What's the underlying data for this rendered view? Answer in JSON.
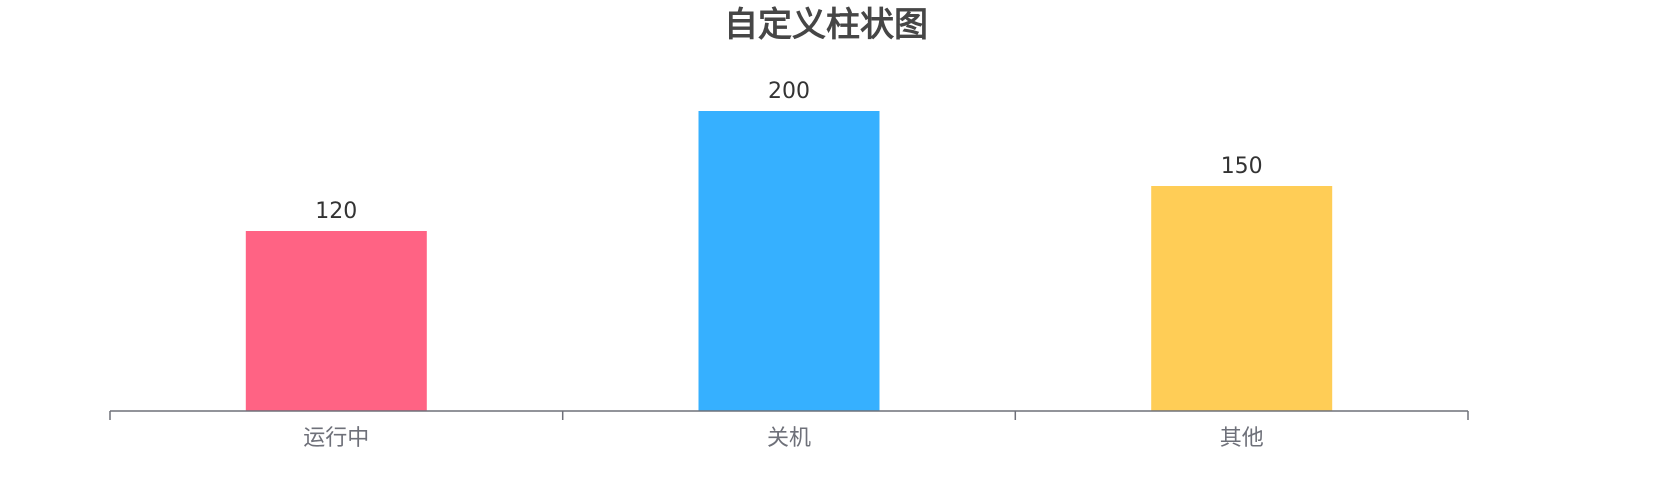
{
  "chart_data": {
    "type": "bar",
    "title": "自定义柱状图",
    "categories": [
      "运行中",
      "关机",
      "其他"
    ],
    "values": [
      120,
      200,
      150
    ],
    "colors": [
      "#ff6384",
      "#36b0ff",
      "#ffcd56"
    ],
    "ylim": [
      0,
      200
    ],
    "show_y_axis": false,
    "grid": false,
    "legend": "none",
    "data_labels": "top"
  }
}
